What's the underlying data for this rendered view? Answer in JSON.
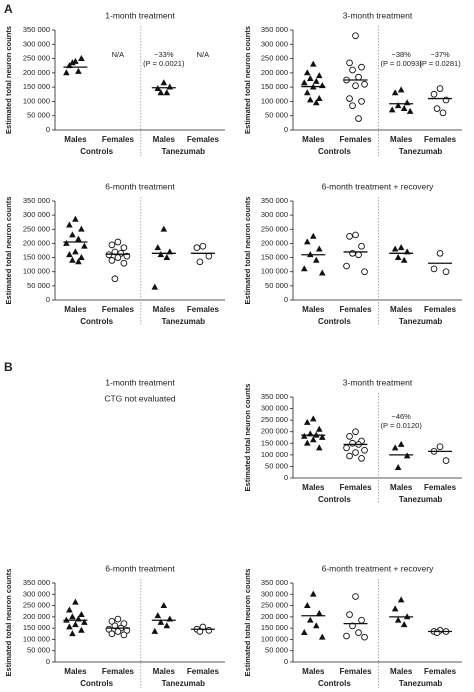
{
  "figure": {
    "panels": [
      "A",
      "B"
    ]
  },
  "chart_data": [
    {
      "type": "strip",
      "title": "1-month treatment",
      "ylabel": "Estimated total neuron counts",
      "ylim": [
        0,
        350000
      ],
      "yticks": [
        0,
        {
          "value": 50000,
          "label": "50 000"
        },
        {
          "value": 100000,
          "label": "100 000"
        },
        {
          "value": 150000,
          "label": "150 000"
        },
        {
          "value": 200000,
          "label": "200 000"
        },
        {
          "value": 250000,
          "label": "250 000"
        },
        {
          "value": 300000,
          "label": "300 000"
        },
        {
          "value": 350000,
          "label": "350 000"
        }
      ],
      "categories": [
        "Males",
        "Females",
        "Males",
        "Females"
      ],
      "group_labels": [
        "Controls",
        "Tanezumab"
      ],
      "markers": [
        "triangle",
        "circle",
        "triangle",
        "circle"
      ],
      "color": "#111111",
      "points": [
        [
          240000,
          225000,
          250000,
          235000,
          205000,
          200000
        ],
        [],
        [
          165000,
          145000,
          150000,
          130000,
          130000
        ],
        []
      ],
      "medians": [
        220000,
        null,
        148000,
        null
      ],
      "annotations": [
        {
          "category": 1,
          "lines": [
            "N/A"
          ]
        },
        {
          "category": 2,
          "lines": [
            "−33%",
            "(P = 0.0021)"
          ]
        },
        {
          "category": 3,
          "lines": [
            "N/A"
          ]
        }
      ]
    },
    {
      "type": "strip",
      "title": "3-month treatment",
      "ylabel": "Estimated total neuron counts",
      "ylim": [
        0,
        350000
      ],
      "yticks": [
        0,
        {
          "value": 50000,
          "label": "50 000"
        },
        {
          "value": 100000,
          "label": "100 000"
        },
        {
          "value": 150000,
          "label": "150 000"
        },
        {
          "value": 200000,
          "label": "200 000"
        },
        {
          "value": 250000,
          "label": "250 000"
        },
        {
          "value": 300000,
          "label": "300 000"
        },
        {
          "value": 350000,
          "label": "350 000"
        }
      ],
      "categories": [
        "Males",
        "Females",
        "Males",
        "Females"
      ],
      "group_labels": [
        "Controls",
        "Tanezumab"
      ],
      "markers": [
        "triangle",
        "circle",
        "triangle",
        "circle"
      ],
      "color": "#111111",
      "points": [
        [
          230000,
          200000,
          190000,
          180000,
          170000,
          165000,
          155000,
          150000,
          130000,
          110000,
          105000,
          95000
        ],
        [
          330000,
          235000,
          220000,
          210000,
          185000,
          175000,
          160000,
          155000,
          110000,
          100000,
          85000,
          40000
        ],
        [
          140000,
          130000,
          95000,
          85000,
          75000,
          70000,
          65000
        ],
        [
          145000,
          125000,
          105000,
          75000,
          60000
        ]
      ],
      "medians": [
        152000,
        175000,
        92000,
        110000
      ],
      "annotations": [
        {
          "category": 2,
          "lines": [
            "−38%",
            "(P = 0.0093)"
          ]
        },
        {
          "category": 3,
          "lines": [
            "−37%",
            "(P = 0.0281)"
          ]
        }
      ]
    },
    {
      "type": "strip",
      "title": "6-month treatment",
      "ylabel": "Estimated total neuron counts",
      "ylim": [
        0,
        350000
      ],
      "yticks": [
        0,
        {
          "value": 50000,
          "label": "50 000"
        },
        {
          "value": 100000,
          "label": "100 000"
        },
        {
          "value": 150000,
          "label": "150 000"
        },
        {
          "value": 200000,
          "label": "200 000"
        },
        {
          "value": 250000,
          "label": "250 000"
        },
        {
          "value": 300000,
          "label": "300 000"
        },
        {
          "value": 350000,
          "label": "350 000"
        }
      ],
      "categories": [
        "Males",
        "Females",
        "Males",
        "Females"
      ],
      "group_labels": [
        "Controls",
        "Tanezumab"
      ],
      "markers": [
        "triangle",
        "circle",
        "triangle",
        "circle"
      ],
      "color": "#111111",
      "points": [
        [
          285000,
          265000,
          250000,
          230000,
          215000,
          200000,
          190000,
          170000,
          160000,
          150000,
          140000,
          135000
        ],
        [
          205000,
          195000,
          185000,
          170000,
          165000,
          160000,
          155000,
          150000,
          140000,
          130000,
          75000
        ],
        [
          250000,
          185000,
          170000,
          160000,
          150000,
          45000
        ],
        [
          190000,
          185000,
          155000,
          135000
        ]
      ],
      "medians": [
        205000,
        162000,
        165000,
        165000
      ],
      "annotations": []
    },
    {
      "type": "strip",
      "title": "6-month treatment + recovery",
      "ylabel": "Estimated total neuron counts",
      "ylim": [
        0,
        350000
      ],
      "yticks": [
        0,
        {
          "value": 50000,
          "label": "50 000"
        },
        {
          "value": 100000,
          "label": "100 000"
        },
        {
          "value": 150000,
          "label": "150 000"
        },
        {
          "value": 200000,
          "label": "200 000"
        },
        {
          "value": 250000,
          "label": "250 000"
        },
        {
          "value": 300000,
          "label": "300 000"
        },
        {
          "value": 350000,
          "label": "350 000"
        }
      ],
      "categories": [
        "Males",
        "Females",
        "Males",
        "Females"
      ],
      "group_labels": [
        "Controls",
        "Tanezumab"
      ],
      "markers": [
        "triangle",
        "circle",
        "triangle",
        "circle"
      ],
      "color": "#111111",
      "points": [
        [
          225000,
          205000,
          180000,
          160000,
          140000,
          110000,
          95000
        ],
        [
          230000,
          225000,
          190000,
          165000,
          160000,
          120000,
          100000
        ],
        [
          185000,
          180000,
          170000,
          150000,
          140000
        ],
        [
          165000,
          110000,
          100000
        ]
      ],
      "medians": [
        160000,
        170000,
        165000,
        130000
      ],
      "annotations": []
    },
    {
      "type": "note",
      "title": "1-month treatment",
      "note": "CTG not evaluated"
    },
    {
      "type": "strip",
      "title": "3-month treatment",
      "ylabel": "Estimated total neuron counts",
      "ylim": [
        0,
        350000
      ],
      "yticks": [
        0,
        {
          "value": 50000,
          "label": "50 000"
        },
        {
          "value": 100000,
          "label": "100 000"
        },
        {
          "value": 150000,
          "label": "150 000"
        },
        {
          "value": 200000,
          "label": "200 000"
        },
        {
          "value": 250000,
          "label": "250 000"
        },
        {
          "value": 300000,
          "label": "300 000"
        },
        {
          "value": 350000,
          "label": "350 000"
        }
      ],
      "categories": [
        "Males",
        "Females",
        "Males",
        "Females"
      ],
      "group_labels": [
        "Controls",
        "Tanezumab"
      ],
      "markers": [
        "triangle",
        "circle",
        "triangle",
        "circle"
      ],
      "color": "#111111",
      "points": [
        [
          255000,
          240000,
          210000,
          190000,
          185000,
          180000,
          175000,
          165000,
          150000,
          130000
        ],
        [
          200000,
          180000,
          160000,
          150000,
          145000,
          130000,
          120000,
          110000,
          95000,
          85000
        ],
        [
          145000,
          130000,
          95000,
          45000
        ],
        [
          135000,
          115000,
          75000
        ]
      ],
      "medians": [
        185000,
        145000,
        100000,
        115000
      ],
      "annotations": [
        {
          "category": 2,
          "lines": [
            "−46%",
            "(P = 0.0120)"
          ]
        }
      ]
    },
    {
      "type": "strip",
      "title": "6-month treatment",
      "ylabel": "Estimated total neuron counts",
      "ylim": [
        0,
        350000
      ],
      "yticks": [
        0,
        {
          "value": 50000,
          "label": "50 000"
        },
        {
          "value": 100000,
          "label": "100 000"
        },
        {
          "value": 150000,
          "label": "150 000"
        },
        {
          "value": 200000,
          "label": "200 000"
        },
        {
          "value": 250000,
          "label": "250 000"
        },
        {
          "value": 300000,
          "label": "300 000"
        },
        {
          "value": 350000,
          "label": "350 000"
        }
      ],
      "categories": [
        "Males",
        "Females",
        "Males",
        "Females"
      ],
      "group_labels": [
        "Controls",
        "Tanezumab"
      ],
      "markers": [
        "triangle",
        "circle",
        "triangle",
        "circle"
      ],
      "color": "#111111",
      "points": [
        [
          265000,
          230000,
          210000,
          200000,
          190000,
          185000,
          175000,
          165000,
          155000,
          140000,
          125000
        ],
        [
          190000,
          180000,
          170000,
          160000,
          150000,
          145000,
          140000,
          135000,
          125000,
          120000
        ],
        [
          250000,
          205000,
          190000,
          175000,
          160000,
          135000
        ],
        [
          155000,
          145000,
          140000,
          135000
        ]
      ],
      "medians": [
        185000,
        150000,
        185000,
        145000
      ],
      "annotations": []
    },
    {
      "type": "strip",
      "title": "6-month treatment + recovery",
      "ylabel": "Estimated total neuron counts",
      "ylim": [
        0,
        350000
      ],
      "yticks": [
        0,
        {
          "value": 50000,
          "label": "50 000"
        },
        {
          "value": 100000,
          "label": "100 000"
        },
        {
          "value": 150000,
          "label": "150 000"
        },
        {
          "value": 200000,
          "label": "200 000"
        },
        {
          "value": 250000,
          "label": "250 000"
        },
        {
          "value": 300000,
          "label": "300 000"
        },
        {
          "value": 350000,
          "label": "350 000"
        }
      ],
      "categories": [
        "Males",
        "Females",
        "Males",
        "Females"
      ],
      "group_labels": [
        "Controls",
        "Tanezumab"
      ],
      "markers": [
        "triangle",
        "circle",
        "triangle",
        "circle"
      ],
      "color": "#111111",
      "points": [
        [
          300000,
          250000,
          215000,
          185000,
          160000,
          130000,
          110000
        ],
        [
          290000,
          210000,
          185000,
          160000,
          130000,
          115000,
          110000
        ],
        [
          275000,
          235000,
          200000,
          185000,
          165000
        ],
        [
          140000,
          135000,
          135000,
          130000
        ]
      ],
      "medians": [
        205000,
        170000,
        200000,
        135000
      ],
      "annotations": []
    }
  ]
}
